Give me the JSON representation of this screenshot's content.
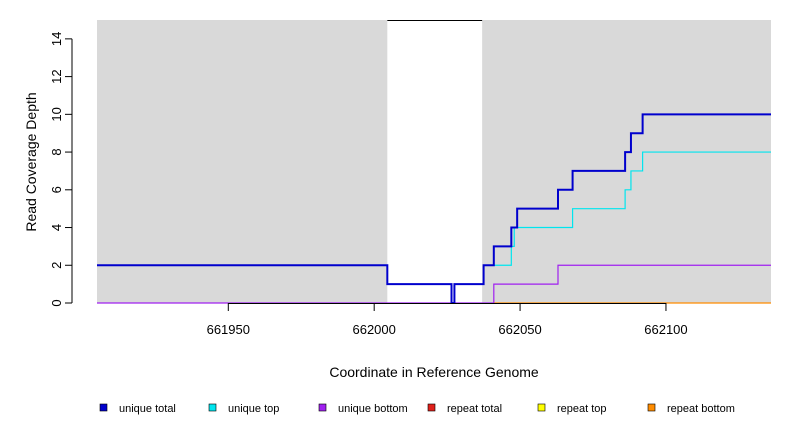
{
  "chart_data": {
    "type": "line",
    "xlabel": "Coordinate in Reference Genome",
    "ylabel": "Read Coverage Depth",
    "xlim": [
      661905,
      662136
    ],
    "ylim": [
      0,
      15
    ],
    "x_ticks": [
      661950,
      662000,
      662050,
      662100
    ],
    "x_tick_labels": [
      "661950",
      "662000",
      "662050",
      "662100"
    ],
    "y_ticks": [
      0,
      2,
      4,
      6,
      8,
      10,
      12,
      14
    ],
    "y_tick_labels": [
      "0",
      "2",
      "4",
      "6",
      "8",
      "10",
      "12",
      "14"
    ],
    "highlight_region": [
      662004.5,
      662037
    ],
    "background_color": "#d9d9d9",
    "series": [
      {
        "name": "unique total",
        "color": "#0000cd",
        "points": [
          [
            661905,
            2
          ],
          [
            662004.5,
            2
          ],
          [
            662004.5,
            1
          ],
          [
            662026.5,
            1
          ],
          [
            662026.5,
            0
          ],
          [
            662027.5,
            0
          ],
          [
            662027.5,
            1
          ],
          [
            662037.5,
            1
          ],
          [
            662037.5,
            2
          ],
          [
            662041,
            2
          ],
          [
            662041,
            3
          ],
          [
            662047,
            3
          ],
          [
            662047,
            4
          ],
          [
            662049,
            4
          ],
          [
            662049,
            5
          ],
          [
            662063,
            5
          ],
          [
            662063,
            6
          ],
          [
            662068,
            6
          ],
          [
            662068,
            7
          ],
          [
            662086,
            7
          ],
          [
            662086,
            8
          ],
          [
            662088,
            8
          ],
          [
            662088,
            9
          ],
          [
            662092,
            9
          ],
          [
            662092,
            10
          ],
          [
            662136,
            10
          ]
        ]
      },
      {
        "name": "unique top",
        "color": "#00e5ee",
        "points": [
          [
            661905,
            2
          ],
          [
            662004.5,
            2
          ],
          [
            662004.5,
            1
          ],
          [
            662026.5,
            1
          ],
          [
            662026.5,
            0
          ],
          [
            662027.5,
            0
          ],
          [
            662027.5,
            1
          ],
          [
            662037.5,
            1
          ],
          [
            662037.5,
            2
          ],
          [
            662047,
            2
          ],
          [
            662047,
            3
          ],
          [
            662048,
            3
          ],
          [
            662048,
            4
          ],
          [
            662068,
            4
          ],
          [
            662068,
            5
          ],
          [
            662086,
            5
          ],
          [
            662086,
            6
          ],
          [
            662088,
            6
          ],
          [
            662088,
            7
          ],
          [
            662092,
            7
          ],
          [
            662092,
            8
          ],
          [
            662136,
            8
          ]
        ]
      },
      {
        "name": "unique bottom",
        "color": "#a020f0",
        "points": [
          [
            661905,
            0
          ],
          [
            662041,
            0
          ],
          [
            662041,
            1
          ],
          [
            662063,
            1
          ],
          [
            662063,
            2
          ],
          [
            662136,
            2
          ]
        ]
      },
      {
        "name": "repeat total",
        "color": "#e0201b",
        "points": []
      },
      {
        "name": "repeat top",
        "color": "#ffff00",
        "points": []
      },
      {
        "name": "repeat bottom",
        "color": "#ff8c00",
        "points": [
          [
            662041,
            0
          ],
          [
            662136,
            0
          ]
        ]
      }
    ]
  }
}
